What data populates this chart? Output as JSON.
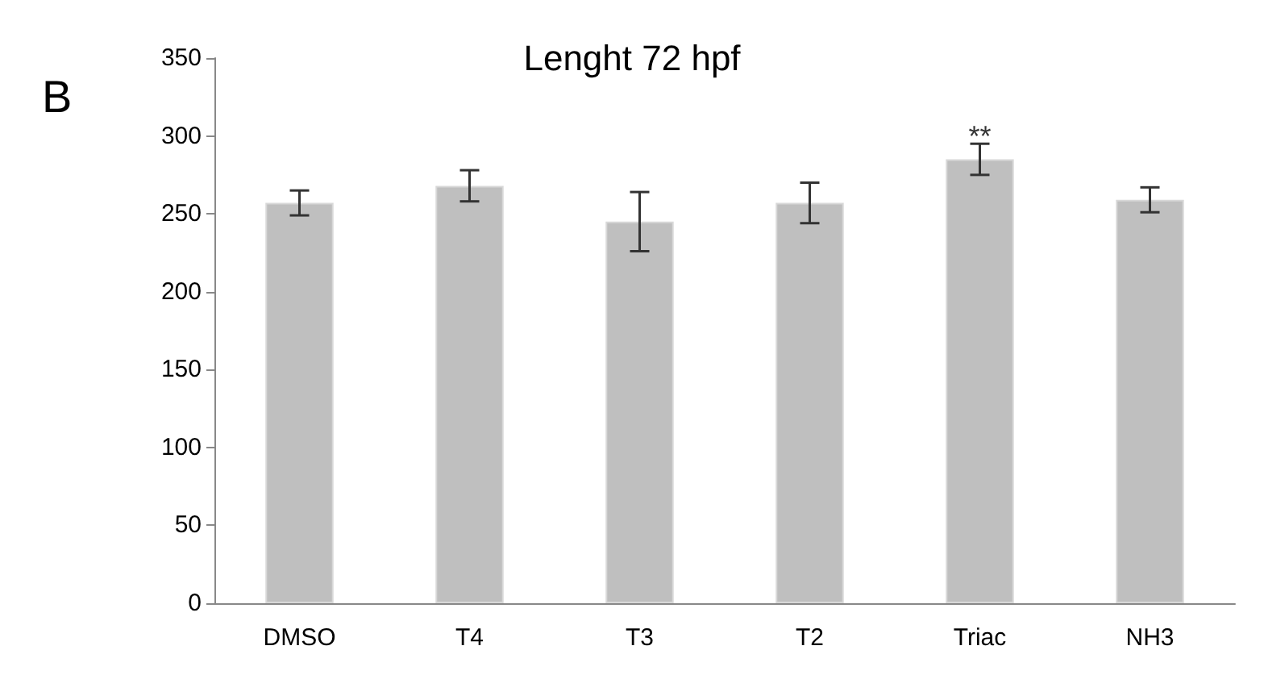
{
  "chart_data": {
    "type": "bar",
    "title": "Lenght 72 hpf",
    "categories": [
      "DMSO",
      "T4",
      "T3",
      "T2",
      "Triac",
      "NH3"
    ],
    "values": [
      257,
      268,
      245,
      257,
      285,
      259
    ],
    "errors": [
      8,
      10,
      19,
      13,
      10,
      8
    ],
    "color": "#bfbfbf",
    "ylim": [
      0,
      350
    ],
    "yticks": [
      0,
      50,
      100,
      150,
      200,
      250,
      300,
      350
    ],
    "grid": false,
    "annotations": [
      "B",
      {
        "text": "**",
        "x": "Triac",
        "y": 300
      }
    ]
  }
}
